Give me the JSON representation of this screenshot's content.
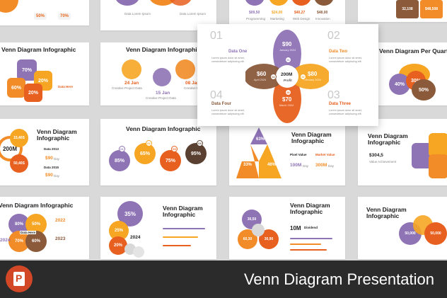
{
  "featured": {
    "num_01": "01",
    "num_02": "02",
    "num_03": "03",
    "num_04": "04",
    "data_one": "Data One",
    "data_two": "Data Two",
    "data_three": "Data Three",
    "data_four": "Data Four",
    "body": "Lorem ipsum dolor sit amet, consectetuer adipiscing elit.",
    "top_value": "$90",
    "top_date": "January 2024",
    "right_value": "$80",
    "right_date": "February 2024",
    "bottom_value": "$70",
    "bottom_date": "March 2024",
    "left_value": "$60",
    "left_date": "April 2024",
    "center_value": "200M",
    "center_label": "Profit"
  },
  "row1": {
    "a_vals": [
      "50%",
      "70%"
    ],
    "b_labels": [
      "Data Lorem Ipsum",
      "Data Lorem Ipsum"
    ],
    "c_vals": [
      "$09,50",
      "$24,00",
      "$40,27",
      "$48,00"
    ],
    "c_labels": [
      "Programming",
      "Marketing",
      "Web Design",
      "Innovation"
    ],
    "d_vals": [
      "32,108",
      "$48,508"
    ]
  },
  "row2": {
    "a_title": "Venn Diagram Infographic",
    "a_vals": [
      "70%",
      "20%",
      "60%",
      "20%"
    ],
    "a_label": "Data Here",
    "b_title": "Venn Diagram Infographic",
    "b_dates": [
      "24 Jan",
      "08 Jan",
      "15 Jan"
    ],
    "b_labels": [
      "Creative Project Data",
      "Creative Project Data",
      "Creative Project Data"
    ],
    "d_title": "Venn Diagram Per Quarter",
    "d_vals": [
      "40%",
      "30%",
      "50%"
    ]
  },
  "row3": {
    "a_title": "Venn Diagram Infographic",
    "a_big": "200M",
    "a_vals": [
      "15,40S",
      "50,40S"
    ],
    "a_data": [
      "Data 2013",
      "Data 2015"
    ],
    "a_prices": [
      "$90",
      "$90"
    ],
    "a_price_unit": "Day",
    "b_title": "Venn Diagram Infographic",
    "b_vals": [
      "85%",
      "65%",
      "75%",
      "95%"
    ],
    "b_nums": [
      "01",
      "02",
      "03",
      "04"
    ],
    "c_title": "Venn Diagram Infographic",
    "c_vals": [
      "63%",
      "33%",
      "46%"
    ],
    "c_labels": [
      "Pixel Value",
      "Market Value"
    ],
    "c_prices": [
      "100M",
      "300M"
    ],
    "c_price_unit": "Day",
    "d_title": "Venn Diagram Infographic",
    "d_value": "$304,5",
    "d_label": "Value Achievement"
  },
  "row4": {
    "a_title": "Venn Diagram Infographic",
    "a_vals": [
      "80%",
      "50%",
      "70%",
      "60%"
    ],
    "a_label": "Data Here",
    "a_years": [
      "2022",
      "2023",
      "2024"
    ],
    "b_vals": [
      "35%",
      "25%",
      "20%"
    ],
    "b_year": "2024",
    "c_title": "Venn Diagram Infographic",
    "c_vals": [
      "30,50",
      "60,30",
      "30,90"
    ],
    "c_big": "10M",
    "c_label": "Dividend",
    "d_title": "Venn Diagram Infographic",
    "d_vals": [
      "50,000",
      "50,000"
    ]
  },
  "bottom": {
    "title": "Venn Diagram Presentation"
  },
  "colors": {
    "purple": "#8e73b5",
    "orange": "#f28c28",
    "deep_orange": "#e7601f",
    "brown": "#8a5a3b",
    "yellow": "#f6a623",
    "dark": "#2b2b2b"
  }
}
